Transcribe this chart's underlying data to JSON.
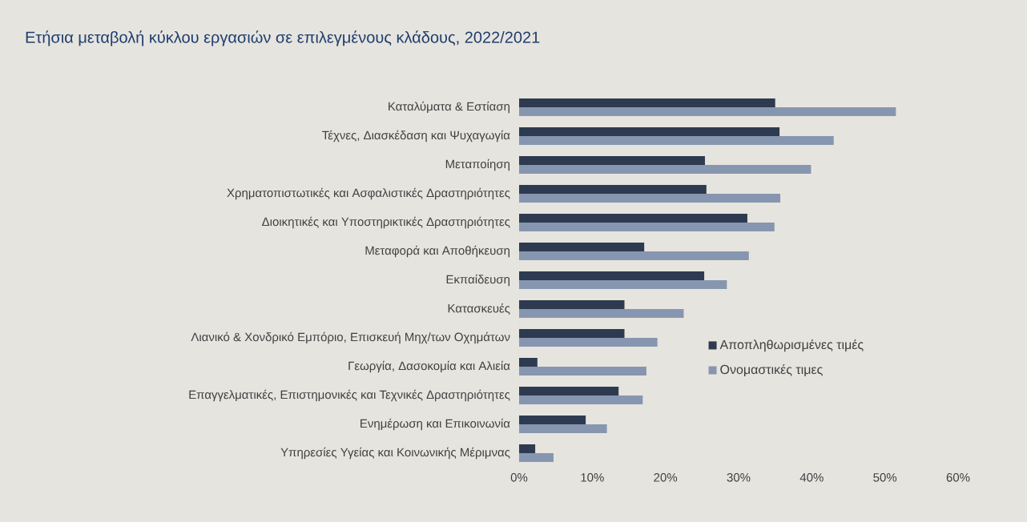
{
  "chart_data": {
    "type": "bar",
    "orientation": "horizontal",
    "title": "Ετήσια μεταβολή κύκλου εργασιών σε επιλεγμένους κλάδους, 2022/2021",
    "categories": [
      "Καταλύματα & Εστίαση",
      "Τέχνες, Διασκέδαση και Ψυχαγωγία",
      "Μεταποίηση",
      "Χρηματοπιστωτικές και Ασφαλιστικές Δραστηριότητες",
      "Διοικητικές και Υποστηρικτικές Δραστηριότητες",
      "Μεταφορά και Αποθήκευση",
      "Εκπαίδευση",
      "Κατασκευές",
      "Λιανικό & Χονδρικό Εμπόριο, Επισκευή Μηχ/των Οχημάτων",
      "Γεωργία, Δασοκομία και Αλιεία",
      "Επαγγελματικές, Επιστημονικές και Τεχνικές Δραστηριότητες",
      "Ενημέρωση και Επικοινωνία",
      "Υπηρεσίες Υγείας και Κοινωνικής Μέριμνας"
    ],
    "series": [
      {
        "name": "Αποπληθωρισμένες τιμές",
        "color": "#2e3a4f",
        "values": [
          35.0,
          35.6,
          25.4,
          25.6,
          31.2,
          17.1,
          25.3,
          14.4,
          14.4,
          2.5,
          13.6,
          9.1,
          2.2
        ]
      },
      {
        "name": "Ονομαστικές τιμες",
        "color": "#8796b0",
        "values": [
          51.5,
          43.0,
          39.9,
          35.7,
          34.9,
          31.4,
          28.4,
          22.5,
          18.9,
          17.4,
          16.9,
          12.0,
          4.7
        ]
      }
    ],
    "xlim": [
      0,
      60
    ],
    "xticks": [
      {
        "value": 0,
        "label": "0%"
      },
      {
        "value": 10,
        "label": "10%"
      },
      {
        "value": 20,
        "label": "20%"
      },
      {
        "value": 30,
        "label": "30%"
      },
      {
        "value": 40,
        "label": "40%"
      },
      {
        "value": 50,
        "label": "50%"
      },
      {
        "value": 60,
        "label": "60%"
      }
    ],
    "legend": "right"
  }
}
